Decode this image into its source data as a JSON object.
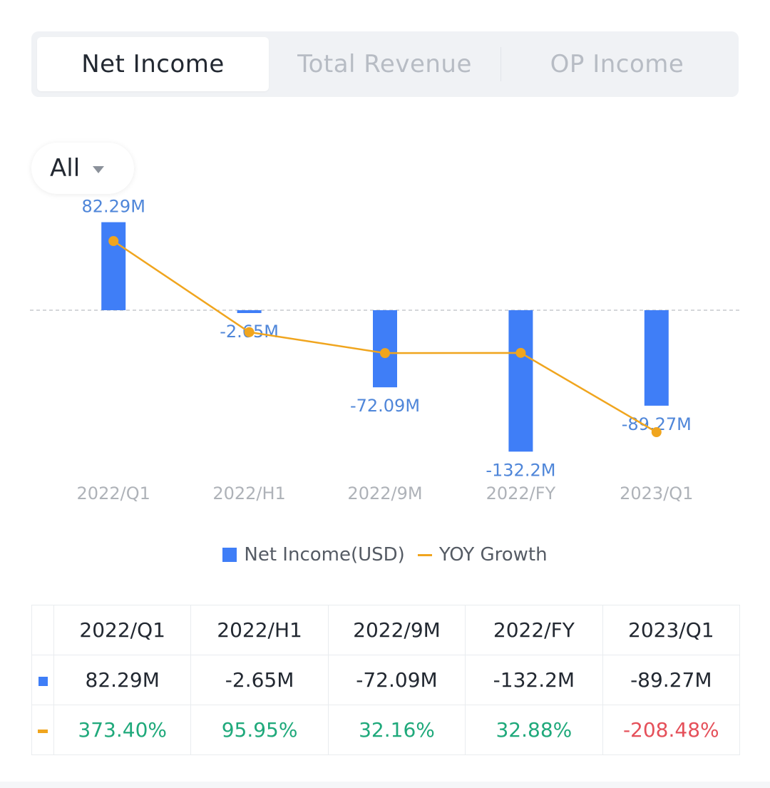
{
  "tabs": [
    {
      "label": "Net Income",
      "active": true
    },
    {
      "label": "Total Revenue",
      "active": false
    },
    {
      "label": "OP Income",
      "active": false
    }
  ],
  "filter": {
    "selected": "All",
    "icon": "caret-down-icon"
  },
  "chart_data": {
    "type": "bar",
    "categories": [
      "2022/Q1",
      "2022/H1",
      "2022/9M",
      "2022/FY",
      "2023/Q1"
    ],
    "series": [
      {
        "name": "Net Income(USD)",
        "type": "bar",
        "values": [
          82.29,
          -2.65,
          -72.09,
          -132.2,
          -89.27
        ],
        "labels": [
          "82.29M",
          "-2.65M",
          "-72.09M",
          "-132.2M",
          "-89.27M"
        ],
        "color": "#3f7ef7"
      },
      {
        "name": "YOY Growth",
        "type": "line",
        "values": [
          373.4,
          95.95,
          32.16,
          32.88,
          -208.48
        ],
        "color": "#f0a51e"
      }
    ],
    "xlabel": "",
    "ylabel": "",
    "baseline_dashed": true,
    "legend_position": "bottom-center"
  },
  "table": {
    "headers": [
      "2022/Q1",
      "2022/H1",
      "2022/9M",
      "2022/FY",
      "2023/Q1"
    ],
    "net_income": [
      "82.29M",
      "-2.65M",
      "-72.09M",
      "-132.2M",
      "-89.27M"
    ],
    "yoy_growth": [
      "373.40%",
      "95.95%",
      "32.16%",
      "32.88%",
      "-208.48%"
    ],
    "positive_color": "#1fa97b",
    "negative_color": "#e5505a"
  }
}
